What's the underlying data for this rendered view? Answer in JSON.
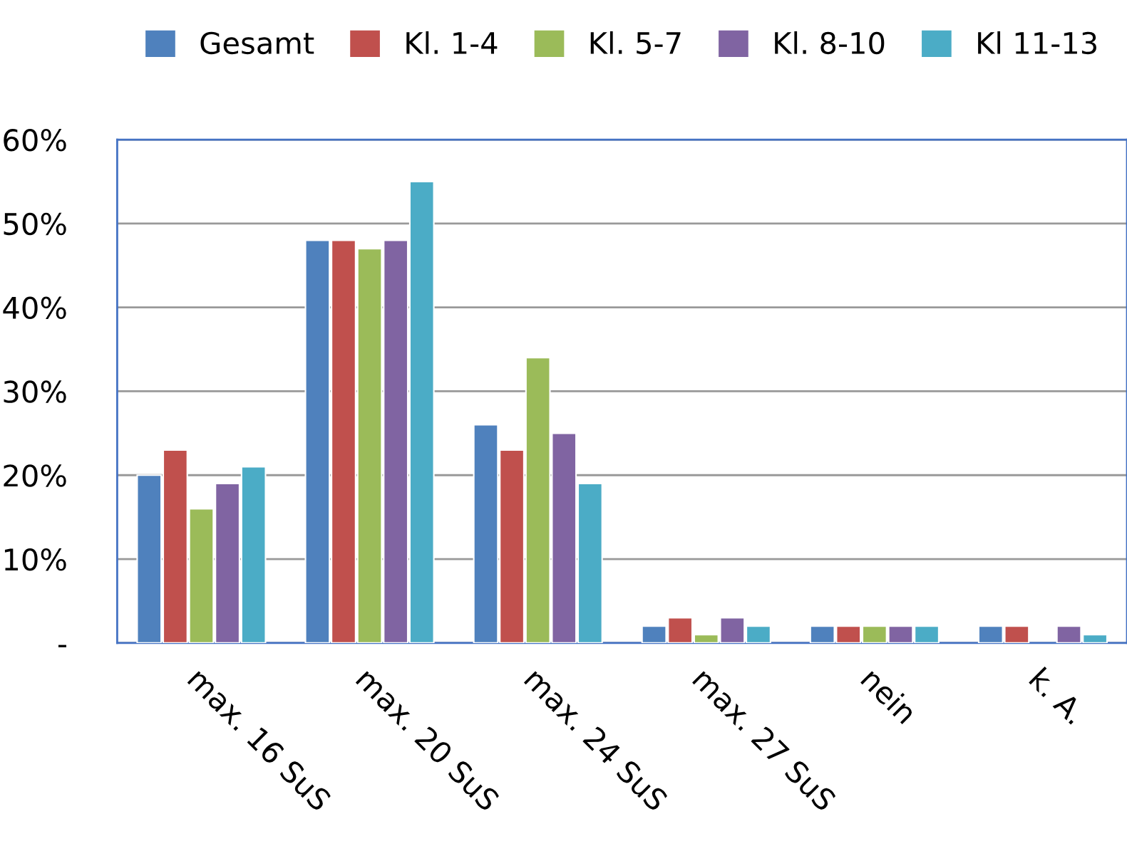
{
  "chart_data": {
    "type": "bar",
    "categories": [
      "max. 16 SuS",
      "max. 20 SuS",
      "max. 24 SuS",
      "max. 27 SuS",
      "nein",
      "k. A."
    ],
    "series": [
      {
        "name": "Gesamt",
        "color": "#4f81bd",
        "values": [
          20,
          48,
          26,
          2,
          2,
          2
        ]
      },
      {
        "name": "Kl. 1-4",
        "color": "#c0504d",
        "values": [
          23,
          48,
          23,
          3,
          2,
          2
        ]
      },
      {
        "name": "Kl. 5-7",
        "color": "#9bbb59",
        "values": [
          16,
          47,
          34,
          1,
          2,
          null
        ]
      },
      {
        "name": "Kl. 8-10",
        "color": "#8064a2",
        "values": [
          19,
          48,
          25,
          3,
          2,
          2
        ]
      },
      {
        "name": "Kl 11-13",
        "color": "#4bacc6",
        "values": [
          21,
          55,
          19,
          2,
          2,
          1
        ]
      }
    ],
    "ylim": [
      0,
      60
    ],
    "yticks": [
      {
        "value": 0,
        "label": "-"
      },
      {
        "value": 10,
        "label": "10%"
      },
      {
        "value": 20,
        "label": "20%"
      },
      {
        "value": 30,
        "label": "30%"
      },
      {
        "value": 40,
        "label": "40%"
      },
      {
        "value": 50,
        "label": "50%"
      },
      {
        "value": 60,
        "label": "60%"
      }
    ],
    "grid": "y",
    "legend": "top"
  }
}
